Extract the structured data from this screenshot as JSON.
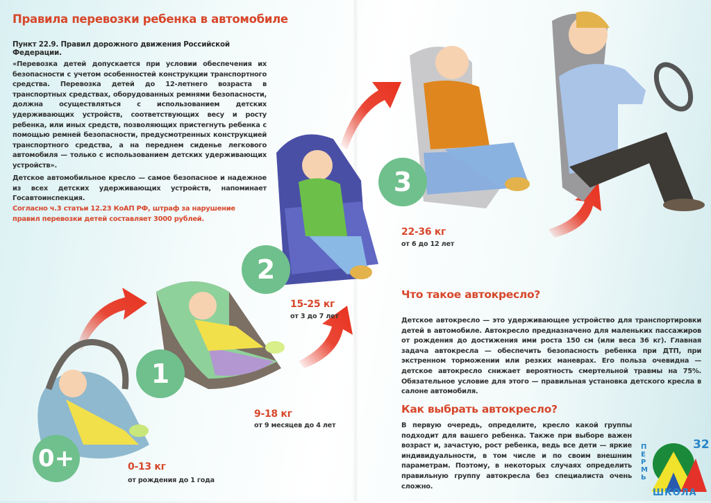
{
  "left": {
    "title": "Правила перевозки ребенка в автомобиле",
    "subtitle": "Пункт 22.9. Правил дорожного движения Российской Федерации.",
    "quote": "«Перевозка детей допускается при условии обеспечения их безопасности с учетом особенностей конструкции транспортного средства. Перевозка детей до 12-летнего возраста в транспортных средствах, оборудованных ремнями безопасности, должна осуществляться с использованием детских удерживающих устройств, соответствующих весу и росту ребенка, или иных средств, позволяющих пристегнуть ребенка с помощью ремней безопасности, предусмотренных конструкцией транспортного средства, а на переднем сиденье легкового автомобиля — только с использованием детских удерживающих устройств».",
    "note": "Детское автомобильное кресло — самое безопасное и надежное из всех детских удерживающих устройств, напоминает Госавтоинспекция.",
    "fine": "Согласно ч.3 статьи 12.23 КоАП РФ, штраф за нарушение правил перевозки детей составляет 3000 рублей."
  },
  "groups": [
    {
      "badge": "0+",
      "weight": "0-13 кг",
      "age": "от рождения до 1 года"
    },
    {
      "badge": "1",
      "weight": "9-18 кг",
      "age": "от 9 месяцев до 4 лет"
    },
    {
      "badge": "2",
      "weight": "15-25 кг",
      "age": "от 3 до 7 лет"
    },
    {
      "badge": "3",
      "weight": "22-36 кг",
      "age": "от 6 до 12 лет"
    }
  ],
  "right": {
    "what_title": "Что такое автокресло?",
    "what_text": "Детское автокресло — это удерживающее устройство для транспортировки детей в автомобиле. Автокресло предназначено для маленьких пассажиров от рождения до достижения ими роста 150 см (или веса 36 кг). Главная задача автокресла — обеспечить безопасность ребенка при ДТП, при экстренном торможении или резких маневрах. Его польза очевидна — детское автокресло снижает вероятность смертельной травмы на 75%. Обязательное условие для этого — правильная установка детского кресла в салоне автомобиля.",
    "how_title": "Как выбрать автокресло?",
    "how_text": "В первую очередь, определите, кресло какой группы подходит для вашего ребенка. Также при выборе важен возраст и, зачастую, рост ребенка, ведь все дети — яркие индивидуальности, в том числе и по своим внешним параметрам. Поэтому, в некоторых случаях определить правильную группу автокресла без специалиста очень сложно."
  },
  "logo": {
    "number": "32",
    "city": "ПЕРМЬ",
    "word": "ШКОЛА"
  },
  "colors": {
    "accent": "#d7472b",
    "badge": "#6fc08c",
    "arrow": "#e8321f"
  }
}
